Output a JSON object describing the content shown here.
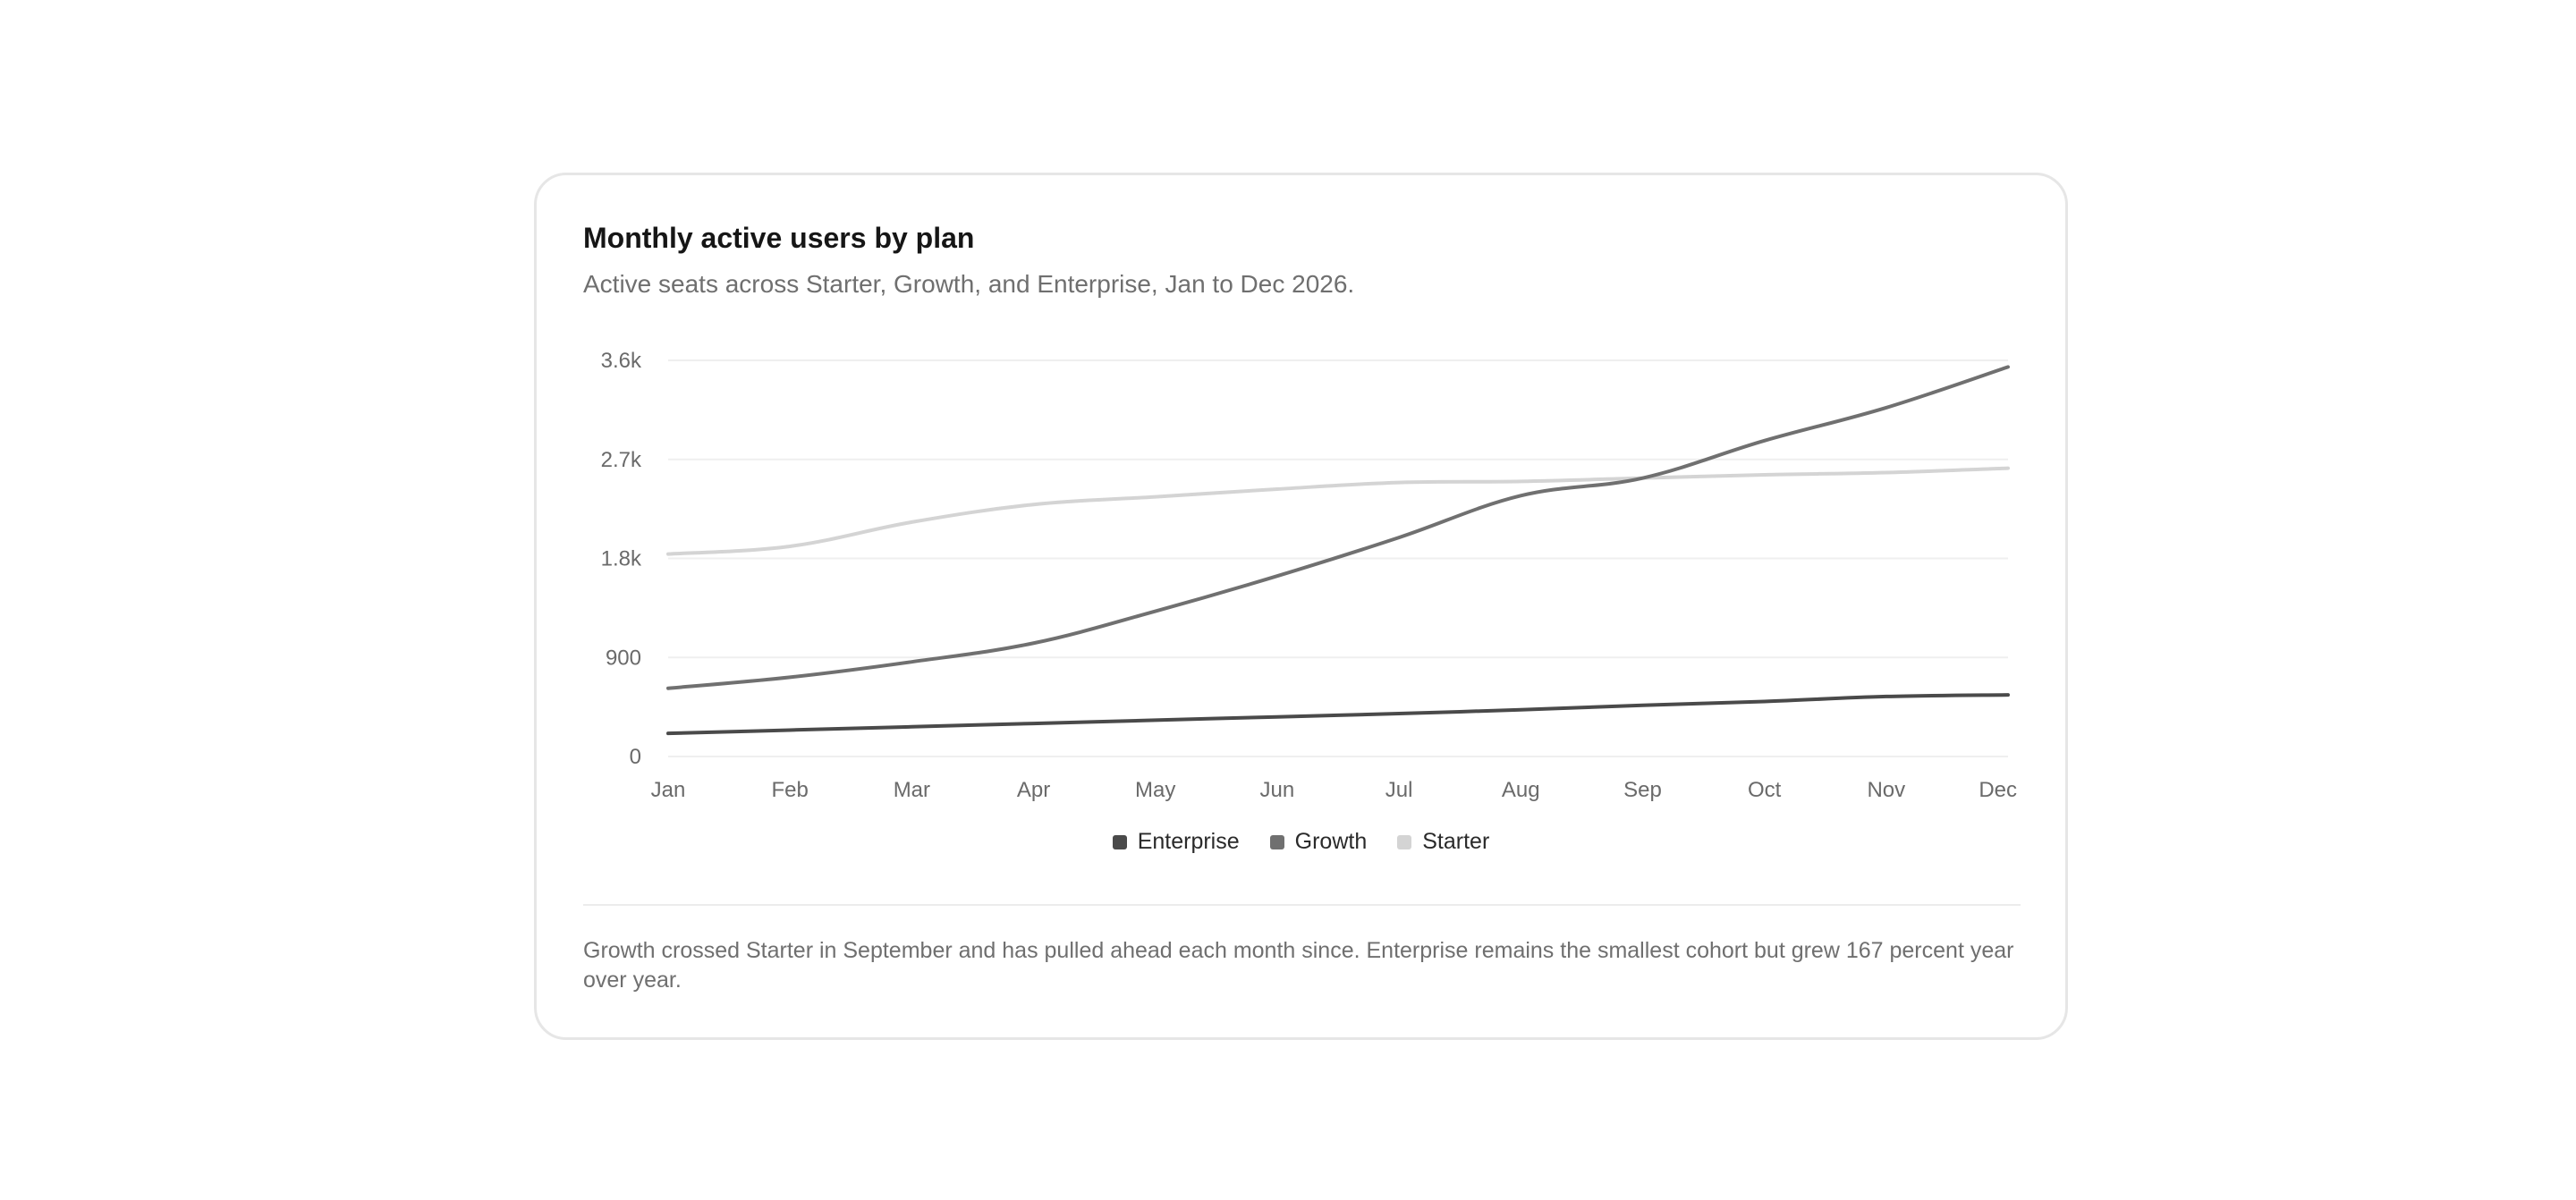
{
  "card": {
    "title": "Monthly active users by plan",
    "subtitle": "Active seats across Starter, Growth, and Enterprise, Jan to Dec 2026.",
    "note": "Growth crossed Starter in September and has pulled ahead each month since. Enterprise remains the smallest cohort but grew 167 percent year over year."
  },
  "chart_data": {
    "type": "line",
    "title": "Monthly active users by plan",
    "subtitle": "Active seats across Starter, Growth, and Enterprise, Jan to Dec 2026.",
    "xlabel": "",
    "ylabel": "",
    "categories": [
      "Jan",
      "Feb",
      "Mar",
      "Apr",
      "May",
      "Jun",
      "Jul",
      "Aug",
      "Sep",
      "Oct",
      "Nov",
      "Dec"
    ],
    "yticks": [
      0,
      900,
      1800,
      2700,
      3600
    ],
    "ytick_labels": [
      "0",
      "900",
      "1.8k",
      "2.7k",
      "3.6k"
    ],
    "ylim": [
      0,
      3600
    ],
    "grid": true,
    "legend_position": "bottom-center",
    "series": [
      {
        "name": "Enterprise",
        "color": "#4a4a4a",
        "values": [
          210,
          240,
          270,
          300,
          330,
          360,
          390,
          425,
          465,
          500,
          545,
          560
        ]
      },
      {
        "name": "Growth",
        "color": "#707070",
        "values": [
          620,
          720,
          860,
          1030,
          1320,
          1640,
          1990,
          2370,
          2530,
          2870,
          3170,
          3540
        ]
      },
      {
        "name": "Starter",
        "color": "#d4d4d4",
        "values": [
          1840,
          1910,
          2130,
          2290,
          2360,
          2430,
          2490,
          2500,
          2530,
          2560,
          2580,
          2620
        ]
      }
    ]
  }
}
